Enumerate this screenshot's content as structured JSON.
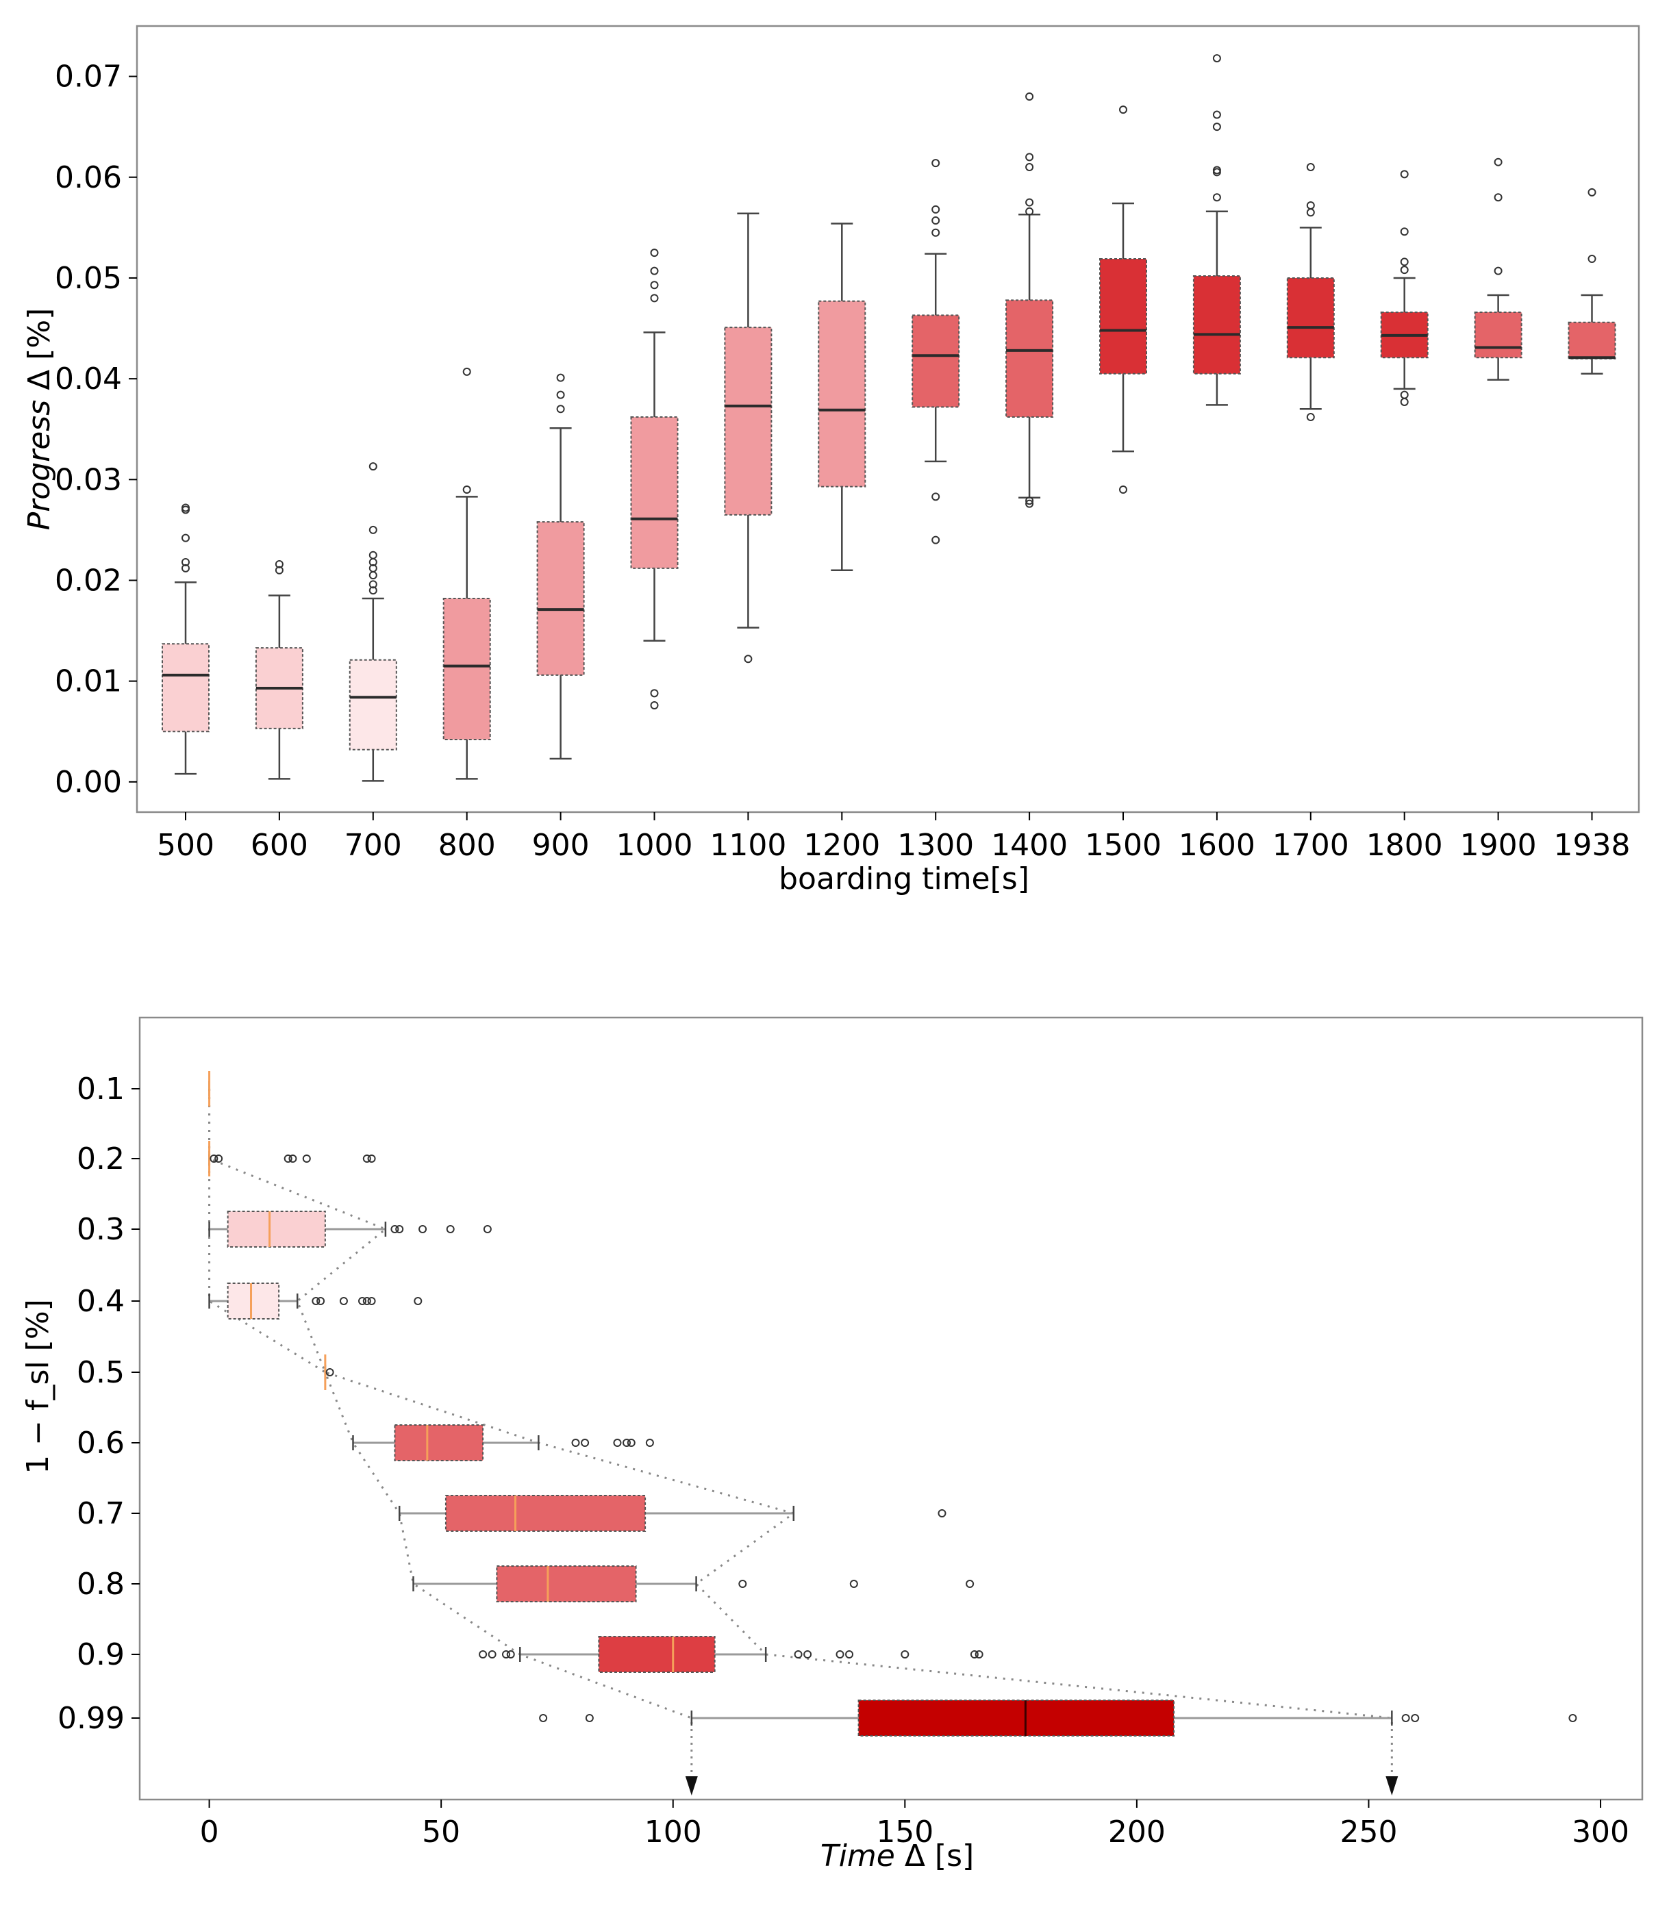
{
  "chart_data": [
    {
      "type": "box",
      "orientation": "vertical",
      "xlabel": "boarding time[s]",
      "ylabel": {
        "italic": "Progress",
        "rest": " Δ [%]"
      },
      "ylim": [
        -0.003,
        0.075
      ],
      "yticks": [
        "0.00",
        "0.01",
        "0.02",
        "0.03",
        "0.04",
        "0.05",
        "0.06",
        "0.07"
      ],
      "categories": [
        "500",
        "600",
        "700",
        "800",
        "900",
        "1000",
        "1100",
        "1200",
        "1300",
        "1400",
        "1500",
        "1600",
        "1700",
        "1800",
        "1900",
        "1938"
      ],
      "boxes": [
        {
          "label": "500",
          "whislo": 0.0008,
          "q1": 0.005,
          "med": 0.0106,
          "q3": 0.0137,
          "whishi": 0.0198,
          "fliers": [
            0.0212,
            0.0218,
            0.0242,
            0.027,
            0.0272
          ],
          "color": "#fad0d2"
        },
        {
          "label": "600",
          "whislo": 0.0003,
          "q1": 0.0053,
          "med": 0.0093,
          "q3": 0.0133,
          "whishi": 0.0185,
          "fliers": [
            0.021,
            0.0216
          ],
          "color": "#fad0d2"
        },
        {
          "label": "700",
          "whislo": 0.0001,
          "q1": 0.0032,
          "med": 0.0084,
          "q3": 0.0121,
          "whishi": 0.0182,
          "fliers": [
            0.019,
            0.0196,
            0.0205,
            0.0212,
            0.0218,
            0.0225,
            0.025,
            0.0313
          ],
          "color": "#fde7e8"
        },
        {
          "label": "800",
          "whislo": 0.0003,
          "q1": 0.0042,
          "med": 0.0115,
          "q3": 0.0182,
          "whishi": 0.0283,
          "fliers": [
            0.029,
            0.0407
          ],
          "color": "#f09b9f"
        },
        {
          "label": "900",
          "whislo": 0.0023,
          "q1": 0.0106,
          "med": 0.0171,
          "q3": 0.0258,
          "whishi": 0.0351,
          "fliers": [
            0.037,
            0.0384,
            0.0401
          ],
          "color": "#f09b9f"
        },
        {
          "label": "1000",
          "whislo": 0.014,
          "q1": 0.0212,
          "med": 0.0261,
          "q3": 0.0362,
          "whishi": 0.0446,
          "fliers": [
            0.0076,
            0.0088,
            0.048,
            0.0493,
            0.0507,
            0.0525
          ],
          "color": "#f09b9f"
        },
        {
          "label": "1100",
          "whislo": 0.0153,
          "q1": 0.0265,
          "med": 0.0373,
          "q3": 0.0451,
          "whishi": 0.0564,
          "fliers": [
            0.0122
          ],
          "color": "#f09b9f"
        },
        {
          "label": "1200",
          "whislo": 0.021,
          "q1": 0.0293,
          "med": 0.0369,
          "q3": 0.0477,
          "whishi": 0.0554,
          "fliers": [],
          "color": "#f09b9f"
        },
        {
          "label": "1300",
          "whislo": 0.0318,
          "q1": 0.0372,
          "med": 0.0423,
          "q3": 0.0463,
          "whishi": 0.0524,
          "fliers": [
            0.024,
            0.0283,
            0.0545,
            0.0557,
            0.0568,
            0.0614
          ],
          "color": "#e46468"
        },
        {
          "label": "1400",
          "whislo": 0.0282,
          "q1": 0.0362,
          "med": 0.0428,
          "q3": 0.0478,
          "whishi": 0.0563,
          "fliers": [
            0.0276,
            0.0279,
            0.0566,
            0.0575,
            0.061,
            0.062,
            0.068
          ],
          "color": "#e46468"
        },
        {
          "label": "1500",
          "whislo": 0.0328,
          "q1": 0.0405,
          "med": 0.0448,
          "q3": 0.0519,
          "whishi": 0.0574,
          "fliers": [
            0.029,
            0.0667
          ],
          "color": "#d93035"
        },
        {
          "label": "1600",
          "whislo": 0.0374,
          "q1": 0.0405,
          "med": 0.0444,
          "q3": 0.0502,
          "whishi": 0.0566,
          "fliers": [
            0.058,
            0.0605,
            0.0607,
            0.065,
            0.0662,
            0.0718
          ],
          "color": "#d93035"
        },
        {
          "label": "1700",
          "whislo": 0.037,
          "q1": 0.0421,
          "med": 0.0451,
          "q3": 0.05,
          "whishi": 0.055,
          "fliers": [
            0.0362,
            0.0565,
            0.0572,
            0.061
          ],
          "color": "#d93035"
        },
        {
          "label": "1800",
          "whislo": 0.039,
          "q1": 0.0421,
          "med": 0.0443,
          "q3": 0.0466,
          "whishi": 0.05,
          "fliers": [
            0.0377,
            0.0384,
            0.0508,
            0.0516,
            0.0546,
            0.0603
          ],
          "color": "#d93035"
        },
        {
          "label": "1900",
          "whislo": 0.0399,
          "q1": 0.0421,
          "med": 0.0431,
          "q3": 0.0466,
          "whishi": 0.0483,
          "fliers": [
            0.0507,
            0.058,
            0.0615
          ],
          "color": "#e46468"
        },
        {
          "label": "1938",
          "whislo": 0.0405,
          "q1": 0.042,
          "med": 0.0421,
          "q3": 0.0456,
          "whishi": 0.0483,
          "fliers": [
            0.0519,
            0.0585
          ],
          "color": "#e46468"
        }
      ]
    },
    {
      "type": "box",
      "orientation": "horizontal",
      "xlabel": {
        "italic": "Time",
        "rest": " Δ [s]"
      },
      "ylabel": "1 − f_sl [%]",
      "xlim": [
        -15,
        309
      ],
      "xticks": [
        "0",
        "50",
        "100",
        "150",
        "200",
        "250",
        "300"
      ],
      "categories": [
        "0.1",
        "0.2",
        "0.3",
        "0.4",
        "0.5",
        "0.6",
        "0.7",
        "0.8",
        "0.9",
        "0.99"
      ],
      "boxes": [
        {
          "label": "0.1",
          "whislo": 0,
          "q1": 0,
          "med": 0,
          "q3": 0,
          "whishi": 0,
          "fliers": [],
          "color": "#fad0d2",
          "median_color": "#f5a05a"
        },
        {
          "label": "0.2",
          "whislo": 0,
          "q1": 0,
          "med": 0,
          "q3": 0,
          "whishi": 0,
          "fliers": [
            1,
            2,
            17,
            18,
            21,
            34,
            35
          ],
          "color": "#fad0d2",
          "median_color": "#f5a05a"
        },
        {
          "label": "0.3",
          "whislo": 0,
          "q1": 4,
          "med": 13,
          "q3": 25,
          "whishi": 38,
          "fliers": [
            40,
            41,
            46,
            52,
            60
          ],
          "color": "#fad0d2",
          "median_color": "#f5a05a"
        },
        {
          "label": "0.4",
          "whislo": 0,
          "q1": 4,
          "med": 9,
          "q3": 15,
          "whishi": 19,
          "fliers": [
            23,
            24,
            29,
            33,
            34,
            35,
            45
          ],
          "color": "#fde7e8",
          "median_color": "#f5a05a"
        },
        {
          "label": "0.5",
          "whislo": 25,
          "q1": 25,
          "med": 25,
          "q3": 25,
          "whishi": 25,
          "fliers": [
            26
          ],
          "color": "#f09b9f",
          "median_color": "#f5a05a"
        },
        {
          "label": "0.6",
          "whislo": 31,
          "q1": 40,
          "med": 47,
          "q3": 59,
          "whishi": 71,
          "fliers": [
            79,
            81,
            88,
            90,
            91,
            95
          ],
          "color": "#e46468",
          "median_color": "#f5a05a"
        },
        {
          "label": "0.7",
          "whislo": 41,
          "q1": 51,
          "med": 66,
          "q3": 94,
          "whishi": 126,
          "fliers": [
            158
          ],
          "color": "#e46468",
          "median_color": "#f5a05a"
        },
        {
          "label": "0.8",
          "whislo": 44,
          "q1": 62,
          "med": 73,
          "q3": 92,
          "whishi": 105,
          "fliers": [
            115,
            139,
            164
          ],
          "color": "#e46468",
          "median_color": "#f5a05a"
        },
        {
          "label": "0.9",
          "whislo": 67,
          "q1": 84,
          "med": 100,
          "q3": 109,
          "whishi": 120,
          "fliers": [
            59,
            61,
            64,
            65,
            127,
            129,
            136,
            138,
            150,
            165,
            166
          ],
          "color": "#dd3e43",
          "median_color": "#f5a05a"
        },
        {
          "label": "0.99",
          "whislo": 104,
          "q1": 140,
          "med": 176,
          "q3": 208,
          "whishi": 255,
          "fliers": [
            72,
            82,
            258,
            260,
            294
          ],
          "color": "#c40000",
          "median_color": "#3a0000"
        }
      ],
      "annotations": {
        "arrows_at": [
          104,
          255
        ]
      }
    }
  ]
}
